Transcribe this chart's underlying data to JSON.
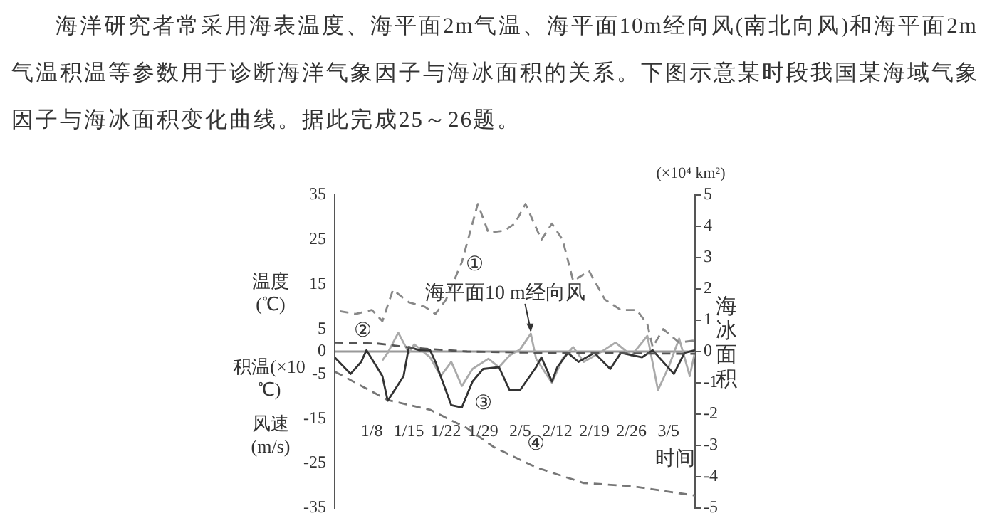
{
  "chart_data": {
    "type": "line",
    "title": "海洋研究者常采用海表温度、海平面2m气温、海平面10m经向风(南北向风)和海平面2m气温积温等参数用于诊断海洋气象因子与海冰面积的关系。下图示意某时段我国某海域气象因子与海冰面积变化曲线。据此完成25～26题。",
    "xlabel": "时间",
    "ylabel": "温度(℃)",
    "y2label": "海冰面积",
    "annotations": [
      "积温(×10 ℃)",
      "风速(m/s)",
      "(×10⁴ km²)"
    ],
    "xlim": [
      "--01-01",
      "--03-10"
    ],
    "xticks": [
      {
        "value": "--01-08",
        "label": "1/8"
      },
      {
        "value": "--01-15",
        "label": "1/15"
      },
      {
        "value": "--01-22",
        "label": "1/22"
      },
      {
        "value": "--01-29",
        "label": "1/29"
      },
      {
        "value": "--02-05",
        "label": "2/5"
      },
      {
        "value": "--02-12",
        "label": "2/12"
      },
      {
        "value": "--02-19",
        "label": "2/19"
      },
      {
        "value": "--02-26",
        "label": "2/26"
      },
      {
        "value": "--03-05",
        "label": "3/5"
      }
    ],
    "ylim": [
      -35,
      35
    ],
    "yticks": [
      -35,
      -25,
      -15,
      -5,
      0,
      5,
      15,
      25,
      35
    ],
    "y2lim": [
      -5,
      5
    ],
    "y2ticks": [
      -5,
      -4,
      -3,
      -2,
      -1,
      0,
      1,
      2,
      3,
      4,
      5
    ],
    "grid": false,
    "legend": false,
    "marker": "none",
    "ref_lines": [
      {
        "axis": "y",
        "value": 0,
        "color": "#999999"
      }
    ],
    "series": [
      {
        "name": "①",
        "color": "#888888",
        "line_style": "dashed",
        "x": [
          "--01-02",
          "--01-05",
          "--01-08",
          "--01-10",
          "--01-12",
          "--01-15",
          "--01-18",
          "--01-20",
          "--01-22",
          "--01-25",
          "--01-28",
          "--01-30",
          "--02-02",
          "--02-04",
          "--02-06",
          "--02-09",
          "--02-11",
          "--02-13",
          "--02-15",
          "--02-18",
          "--02-21",
          "--02-24",
          "--02-27",
          "--03-01",
          "--03-02",
          "--03-04",
          "--03-07",
          "--03-10"
        ],
        "values": [
          9,
          8.4,
          9.3,
          6.8,
          13.8,
          11,
          10,
          8.4,
          11.6,
          20,
          33,
          26.6,
          27,
          28.6,
          33,
          25,
          28.6,
          25,
          15.8,
          18,
          11.6,
          9.3,
          9.3,
          6.1,
          1,
          5,
          2,
          2.5
        ]
      },
      {
        "name": "②",
        "color": "#555555",
        "line_style": "dashed",
        "x": [
          "--01-01",
          "--01-09",
          "--01-16",
          "--01-26",
          "--02-10",
          "--03-10"
        ],
        "values": [
          2,
          1.8,
          0.8,
          0,
          -0.3,
          -0.5
        ]
      },
      {
        "name": "③",
        "color": "#333333",
        "line_style": "solid",
        "x": [
          "--01-01",
          "--01-04",
          "--01-06",
          "--01-07",
          "--01-10",
          "--01-11",
          "--01-14",
          "--01-15",
          "--01-17",
          "--01-19",
          "--01-20",
          "--01-23",
          "--01-25",
          "--01-27",
          "--01-29",
          "--02-01",
          "--02-03",
          "--02-05",
          "--02-08",
          "--02-09",
          "--02-11",
          "--02-12",
          "--02-14",
          "--02-16",
          "--02-19",
          "--02-22",
          "--02-24",
          "--02-28",
          "--03-02",
          "--03-06",
          "--03-08",
          "--03-10"
        ],
        "values": [
          -1.3,
          -5,
          -2.3,
          0.3,
          -5.5,
          -11,
          -5.5,
          1,
          0.3,
          0.3,
          -2.3,
          -12,
          -12.5,
          -6.7,
          -3.9,
          -3.5,
          -8.6,
          -8.6,
          -3.5,
          -1.3,
          -6.7,
          -3.5,
          -0.3,
          -2.3,
          -0.3,
          -3.9,
          -0.3,
          -1.3,
          0.3,
          -5,
          -0.3,
          0.3
        ]
      },
      {
        "name": "海平面10 m经向风",
        "color": "#aaaaaa",
        "line_style": "solid",
        "x": [
          "--01-10",
          "--01-11",
          "--01-13",
          "--01-15",
          "--01-16",
          "--01-19",
          "--01-21",
          "--01-23",
          "--01-25",
          "--01-27",
          "--01-30",
          "--02-01",
          "--02-03",
          "--02-05",
          "--02-07",
          "--02-08",
          "--02-11",
          "--02-13",
          "--02-15",
          "--02-17",
          "--02-20",
          "--02-23",
          "--02-26",
          "--03-01",
          "--03-03",
          "--03-05",
          "--03-07",
          "--03-09",
          "--03-10"
        ],
        "values": [
          -2,
          -0.3,
          4.2,
          -0.3,
          1.6,
          -1.3,
          -5.5,
          -2.3,
          -7.7,
          -3.9,
          -1.6,
          -3.5,
          -0.9,
          0.5,
          4,
          -1.6,
          -7,
          -1.6,
          1,
          -2.3,
          -0.3,
          2,
          -0.9,
          3.5,
          -8.6,
          -3.5,
          2.9,
          -5.5,
          0
        ]
      },
      {
        "name": "④",
        "color": "#777777",
        "line_style": "dashed",
        "axis": "y2",
        "x": [
          "--01-01",
          "--01-11",
          "--01-19",
          "--01-26",
          "--01-31",
          "--02-08",
          "--02-17",
          "--02-26",
          "--03-10"
        ],
        "values": [
          -0.64,
          -1.55,
          -1.86,
          -2.45,
          -3.05,
          -3.7,
          -4.2,
          -4.3,
          -4.6
        ]
      }
    ]
  }
}
